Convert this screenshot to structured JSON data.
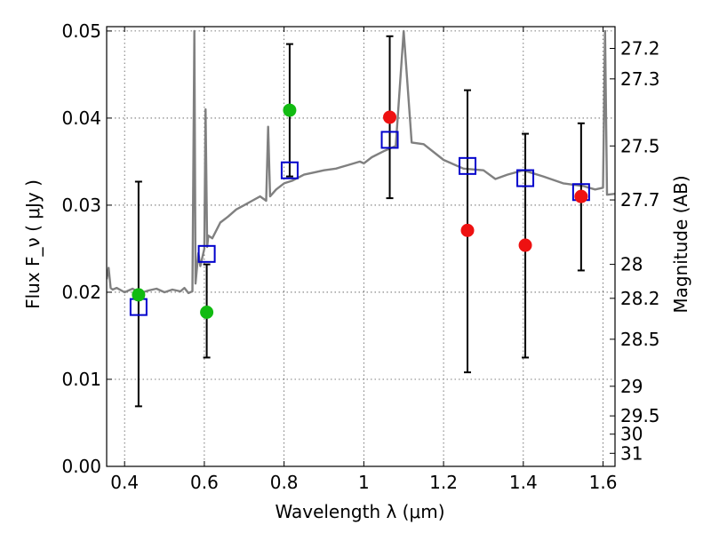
{
  "chart_data": {
    "type": "scatter",
    "xlabel": "Wavelength  λ (μm)",
    "ylabel": "Flux  F_ν  ( μJy )",
    "ylabel_right": "Magnitude (AB)",
    "xlim": [
      0.355,
      1.63
    ],
    "ylim": [
      0.0,
      0.0505
    ],
    "x_ticks": [
      0.4,
      0.6,
      0.8,
      1.0,
      1.2,
      1.4,
      1.6
    ],
    "x_tick_labels": [
      "0.4",
      "0.6",
      "0.8",
      "1",
      "1.2",
      "1.4",
      "1.6"
    ],
    "y_ticks": [
      0.0,
      0.01,
      0.02,
      0.03,
      0.04,
      0.05
    ],
    "y_tick_labels": [
      "0.00",
      "0.01",
      "0.02",
      "0.03",
      "0.04",
      "0.05"
    ],
    "right_ticks": [
      {
        "label": "27.2",
        "flux": 0.048
      },
      {
        "label": "27.3",
        "flux": 0.0445
      },
      {
        "label": "27.5",
        "flux": 0.0368
      },
      {
        "label": "27.7",
        "flux": 0.0306
      },
      {
        "label": "28",
        "flux": 0.0232
      },
      {
        "label": "28.2",
        "flux": 0.0193
      },
      {
        "label": "28.5",
        "flux": 0.0146
      },
      {
        "label": "29",
        "flux": 0.0092
      },
      {
        "label": "29.5",
        "flux": 0.0058
      },
      {
        "label": "30",
        "flux": 0.0037
      },
      {
        "label": "31",
        "flux": 0.0015
      }
    ],
    "grid": true,
    "colors": {
      "sed": "#808080",
      "green": "#11bb11",
      "red": "#ee1111",
      "square": "#0000cc",
      "errorbar": "#000000"
    },
    "errorbars": [
      {
        "x": 0.435,
        "low": 0.0069,
        "high": 0.0327
      },
      {
        "x": 0.606,
        "low": 0.0125,
        "high": 0.0232
      },
      {
        "x": 0.814,
        "low": 0.0333,
        "high": 0.0485
      },
      {
        "x": 1.065,
        "low": 0.0308,
        "high": 0.0494
      },
      {
        "x": 1.26,
        "low": 0.0108,
        "high": 0.0432
      },
      {
        "x": 1.405,
        "low": 0.0125,
        "high": 0.0382
      },
      {
        "x": 1.545,
        "low": 0.0225,
        "high": 0.0394
      }
    ],
    "green_points": [
      {
        "x": 0.435,
        "y": 0.0197
      },
      {
        "x": 0.606,
        "y": 0.0177
      },
      {
        "x": 0.814,
        "y": 0.0409
      }
    ],
    "red_points": [
      {
        "x": 1.065,
        "y": 0.0401
      },
      {
        "x": 1.26,
        "y": 0.0271
      },
      {
        "x": 1.405,
        "y": 0.0254
      },
      {
        "x": 1.545,
        "y": 0.031
      }
    ],
    "model_points": [
      {
        "x": 0.435,
        "y": 0.0183
      },
      {
        "x": 0.606,
        "y": 0.0244
      },
      {
        "x": 0.814,
        "y": 0.034
      },
      {
        "x": 1.065,
        "y": 0.0375
      },
      {
        "x": 1.26,
        "y": 0.0345
      },
      {
        "x": 1.405,
        "y": 0.0331
      },
      {
        "x": 1.545,
        "y": 0.0315
      }
    ],
    "sed_curve": {
      "x": [
        0.355,
        0.36,
        0.365,
        0.37,
        0.38,
        0.4,
        0.42,
        0.44,
        0.46,
        0.48,
        0.5,
        0.52,
        0.54,
        0.55,
        0.56,
        0.57,
        0.575,
        0.578,
        0.582,
        0.585,
        0.59,
        0.6,
        0.603,
        0.607,
        0.61,
        0.62,
        0.64,
        0.66,
        0.68,
        0.7,
        0.72,
        0.74,
        0.755,
        0.76,
        0.765,
        0.78,
        0.8,
        0.82,
        0.85,
        0.88,
        0.9,
        0.93,
        0.96,
        0.99,
        1.0,
        1.02,
        1.05,
        1.08,
        1.1,
        1.12,
        1.15,
        1.2,
        1.25,
        1.3,
        1.33,
        1.36,
        1.4,
        1.45,
        1.5,
        1.55,
        1.58,
        1.6,
        1.605,
        1.61,
        1.63
      ],
      "y": [
        0.0215,
        0.0228,
        0.0205,
        0.0203,
        0.0205,
        0.02,
        0.0204,
        0.0199,
        0.0202,
        0.0204,
        0.02,
        0.0203,
        0.0201,
        0.0205,
        0.0199,
        0.0201,
        0.05,
        0.021,
        0.023,
        0.0245,
        0.023,
        0.025,
        0.041,
        0.0252,
        0.0265,
        0.0262,
        0.028,
        0.0287,
        0.0295,
        0.03,
        0.0305,
        0.031,
        0.0305,
        0.039,
        0.031,
        0.0318,
        0.0325,
        0.0328,
        0.0335,
        0.0338,
        0.034,
        0.0342,
        0.0346,
        0.035,
        0.0348,
        0.0355,
        0.0362,
        0.0368,
        0.05,
        0.0372,
        0.037,
        0.0352,
        0.0342,
        0.034,
        0.033,
        0.0335,
        0.034,
        0.0333,
        0.0325,
        0.0322,
        0.0318,
        0.032,
        0.05,
        0.0312,
        0.0313
      ]
    }
  }
}
